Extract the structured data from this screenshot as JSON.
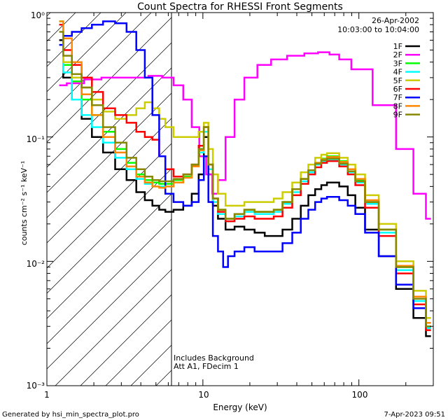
{
  "chart_data": {
    "type": "line",
    "title": "Count Spectra for RHESSI Front Segments",
    "xlabel": "Energy (keV)",
    "ylabel": "counts cm⁻² s⁻¹ keV⁻¹",
    "xscale": "log",
    "yscale": "log",
    "xlim": [
      1,
      300
    ],
    "ylim": [
      0.001,
      1
    ],
    "x_tick_labels": [
      {
        "v": 1,
        "label": "1"
      },
      {
        "v": 10,
        "label": "10"
      },
      {
        "v": 100,
        "label": "100"
      }
    ],
    "y_tick_labels": [
      {
        "v": 1,
        "label": "10⁰"
      },
      {
        "v": 0.1,
        "label": "10⁻¹"
      },
      {
        "v": 0.01,
        "label": "10⁻²"
      },
      {
        "v": 0.001,
        "label": "10⁻³"
      }
    ],
    "info_date": "26-Apr-2002",
    "info_time": "10:03:00 to 10:04:00",
    "annotation_1": "Includes Background",
    "annotation_2": "Att A1, FDecim 1",
    "attenuator_cutoff_kev": 6,
    "footer_left": "Generated by hsi_min_spectra_plot.pro",
    "footer_right": "7-Apr-2023 09:51",
    "series": [
      {
        "name": "1F",
        "color": "#000000",
        "x": [
          1.2,
          1.35,
          1.55,
          1.8,
          2.1,
          2.5,
          3,
          3.5,
          4,
          4.5,
          5,
          5.5,
          6,
          7,
          8,
          9,
          9.8,
          10.5,
          11.2,
          12,
          13,
          15,
          17,
          20,
          23,
          27,
          30,
          35,
          40,
          45,
          50,
          55,
          60,
          65,
          70,
          80,
          90,
          100,
          120,
          150,
          200,
          250,
          290
        ],
        "y": [
          0.6,
          0.3,
          0.2,
          0.14,
          0.1,
          0.075,
          0.055,
          0.045,
          0.036,
          0.031,
          0.028,
          0.026,
          0.025,
          0.026,
          0.028,
          0.035,
          0.05,
          0.1,
          0.05,
          0.028,
          0.022,
          0.018,
          0.019,
          0.018,
          0.017,
          0.016,
          0.016,
          0.018,
          0.022,
          0.028,
          0.034,
          0.038,
          0.041,
          0.043,
          0.043,
          0.04,
          0.034,
          0.027,
          0.018,
          0.011,
          0.006,
          0.0035,
          0.0025
        ]
      },
      {
        "name": "2F",
        "color": "#ff00ff",
        "x": [
          1.2,
          1.5,
          2,
          2.5,
          3,
          4,
          5,
          6,
          7,
          8,
          9,
          10,
          11,
          12,
          13,
          15,
          17,
          20,
          25,
          30,
          40,
          50,
          60,
          70,
          80,
          100,
          150,
          200,
          250,
          290
        ],
        "y": [
          0.26,
          0.27,
          0.29,
          0.3,
          0.3,
          0.3,
          0.31,
          0.3,
          0.26,
          0.2,
          0.12,
          0.07,
          0.05,
          0.035,
          0.045,
          0.1,
          0.2,
          0.3,
          0.38,
          0.42,
          0.45,
          0.47,
          0.48,
          0.46,
          0.42,
          0.35,
          0.18,
          0.08,
          0.035,
          0.022
        ]
      },
      {
        "name": "3F",
        "color": "#00ff00",
        "x": [
          1.2,
          1.35,
          1.55,
          1.8,
          2.1,
          2.5,
          3,
          3.5,
          4,
          4.5,
          5,
          5.5,
          6,
          7,
          8,
          9,
          9.8,
          10.5,
          11.2,
          12,
          13,
          15,
          17,
          20,
          23,
          27,
          30,
          35,
          40,
          45,
          50,
          55,
          60,
          65,
          70,
          80,
          90,
          100,
          120,
          150,
          200,
          250,
          290
        ],
        "y": [
          0.85,
          0.38,
          0.28,
          0.2,
          0.15,
          0.11,
          0.08,
          0.062,
          0.05,
          0.045,
          0.043,
          0.042,
          0.042,
          0.045,
          0.048,
          0.06,
          0.08,
          0.12,
          0.06,
          0.032,
          0.026,
          0.022,
          0.024,
          0.026,
          0.025,
          0.025,
          0.026,
          0.03,
          0.038,
          0.046,
          0.054,
          0.062,
          0.067,
          0.07,
          0.07,
          0.064,
          0.055,
          0.045,
          0.03,
          0.018,
          0.009,
          0.005,
          0.003
        ]
      },
      {
        "name": "4F",
        "color": "#00ffff",
        "x": [
          1.2,
          1.35,
          1.55,
          1.8,
          2.1,
          2.5,
          3,
          3.5,
          4,
          4.5,
          5,
          5.5,
          6,
          7,
          8,
          9,
          9.8,
          10.5,
          11.2,
          12,
          13,
          15,
          17,
          20,
          23,
          27,
          30,
          35,
          40,
          45,
          50,
          55,
          60,
          65,
          70,
          80,
          90,
          100,
          120,
          150,
          200,
          250,
          290
        ],
        "y": [
          0.8,
          0.33,
          0.2,
          0.15,
          0.12,
          0.09,
          0.068,
          0.055,
          0.046,
          0.042,
          0.04,
          0.04,
          0.04,
          0.043,
          0.047,
          0.058,
          0.075,
          0.11,
          0.055,
          0.03,
          0.024,
          0.021,
          0.023,
          0.025,
          0.024,
          0.024,
          0.025,
          0.029,
          0.036,
          0.044,
          0.052,
          0.06,
          0.064,
          0.066,
          0.066,
          0.06,
          0.052,
          0.043,
          0.029,
          0.017,
          0.0085,
          0.0048,
          0.0029
        ]
      },
      {
        "name": "5F",
        "color": "#cccc00",
        "x": [
          1.2,
          1.35,
          1.55,
          1.8,
          2.1,
          2.5,
          3,
          3.5,
          4,
          4.5,
          5,
          5.5,
          6,
          7,
          8,
          9,
          9.8,
          10.5,
          11.2,
          12,
          13,
          15,
          17,
          20,
          23,
          27,
          30,
          35,
          40,
          45,
          50,
          55,
          60,
          65,
          70,
          80,
          90,
          100,
          120,
          150,
          200,
          250,
          290
        ],
        "y": [
          0.8,
          0.4,
          0.3,
          0.25,
          0.2,
          0.16,
          0.14,
          0.15,
          0.17,
          0.19,
          0.17,
          0.14,
          0.12,
          0.1,
          0.1,
          0.1,
          0.11,
          0.13,
          0.08,
          0.05,
          0.035,
          0.028,
          0.028,
          0.03,
          0.03,
          0.03,
          0.032,
          0.036,
          0.043,
          0.052,
          0.06,
          0.068,
          0.072,
          0.074,
          0.074,
          0.068,
          0.06,
          0.05,
          0.034,
          0.02,
          0.01,
          0.0058,
          0.0035
        ]
      },
      {
        "name": "6F",
        "color": "#ff0000",
        "x": [
          1.2,
          1.35,
          1.55,
          1.8,
          2.1,
          2.5,
          3,
          3.5,
          4,
          4.5,
          5,
          5.5,
          6,
          7,
          8,
          9,
          9.8,
          10.5,
          11.2,
          12,
          13,
          15,
          17,
          20,
          23,
          27,
          30,
          35,
          40,
          45,
          50,
          55,
          60,
          65,
          70,
          80,
          90,
          100,
          120,
          150,
          200,
          250,
          290
        ],
        "y": [
          0.8,
          0.5,
          0.38,
          0.3,
          0.23,
          0.17,
          0.15,
          0.13,
          0.11,
          0.1,
          0.095,
          0.07,
          0.055,
          0.048,
          0.05,
          0.06,
          0.085,
          0.12,
          0.06,
          0.032,
          0.025,
          0.021,
          0.022,
          0.023,
          0.022,
          0.022,
          0.023,
          0.027,
          0.034,
          0.042,
          0.05,
          0.057,
          0.062,
          0.064,
          0.064,
          0.058,
          0.05,
          0.041,
          0.027,
          0.016,
          0.008,
          0.0045,
          0.0028
        ]
      },
      {
        "name": "7F",
        "color": "#0000ff",
        "x": [
          1.2,
          1.35,
          1.55,
          1.8,
          2.1,
          2.5,
          3,
          3.5,
          4,
          4.5,
          5,
          5.5,
          6,
          7,
          8,
          9,
          9.8,
          10.5,
          11.2,
          12,
          13,
          14,
          15,
          17,
          20,
          23,
          27,
          30,
          35,
          40,
          45,
          50,
          55,
          60,
          65,
          70,
          80,
          90,
          100,
          120,
          150,
          200,
          250,
          290
        ],
        "y": [
          0.55,
          0.65,
          0.7,
          0.75,
          0.8,
          0.85,
          0.82,
          0.7,
          0.5,
          0.3,
          0.15,
          0.07,
          0.035,
          0.03,
          0.028,
          0.03,
          0.045,
          0.07,
          0.03,
          0.016,
          0.012,
          0.009,
          0.011,
          0.012,
          0.013,
          0.012,
          0.012,
          0.012,
          0.014,
          0.017,
          0.022,
          0.026,
          0.03,
          0.032,
          0.033,
          0.033,
          0.031,
          0.028,
          0.024,
          0.017,
          0.011,
          0.0065,
          0.0042,
          0.003
        ]
      },
      {
        "name": "8F",
        "color": "#ff8800",
        "x": [
          1.2,
          1.35,
          1.55,
          1.8,
          2.1,
          2.5,
          3,
          3.5,
          4,
          4.5,
          5,
          5.5,
          6,
          7,
          8,
          9,
          9.8,
          10.5,
          11.2,
          12,
          13,
          15,
          17,
          20,
          23,
          27,
          30,
          35,
          40,
          45,
          50,
          55,
          60,
          65,
          70,
          80,
          90,
          100,
          120,
          150,
          200,
          250,
          290
        ],
        "y": [
          0.85,
          0.62,
          0.4,
          0.22,
          0.15,
          0.1,
          0.075,
          0.058,
          0.048,
          0.043,
          0.04,
          0.039,
          0.04,
          0.043,
          0.047,
          0.058,
          0.078,
          0.12,
          0.06,
          0.032,
          0.026,
          0.022,
          0.024,
          0.026,
          0.025,
          0.025,
          0.026,
          0.03,
          0.038,
          0.046,
          0.054,
          0.062,
          0.066,
          0.069,
          0.069,
          0.063,
          0.055,
          0.046,
          0.031,
          0.018,
          0.0092,
          0.0052,
          0.0032
        ]
      },
      {
        "name": "9F",
        "color": "#888800",
        "x": [
          1.2,
          1.35,
          1.55,
          1.8,
          2.1,
          2.5,
          3,
          3.5,
          4,
          4.5,
          5,
          5.5,
          6,
          7,
          8,
          9,
          9.8,
          10.5,
          11.2,
          12,
          13,
          15,
          17,
          20,
          23,
          27,
          30,
          35,
          40,
          45,
          50,
          55,
          60,
          65,
          70,
          80,
          90,
          100,
          120,
          150,
          200,
          250,
          290
        ],
        "y": [
          0.7,
          0.45,
          0.32,
          0.25,
          0.18,
          0.12,
          0.09,
          0.068,
          0.055,
          0.048,
          0.045,
          0.044,
          0.044,
          0.046,
          0.05,
          0.06,
          0.08,
          0.12,
          0.06,
          0.032,
          0.026,
          0.022,
          0.024,
          0.026,
          0.025,
          0.025,
          0.026,
          0.03,
          0.038,
          0.046,
          0.054,
          0.061,
          0.065,
          0.067,
          0.067,
          0.061,
          0.053,
          0.044,
          0.03,
          0.018,
          0.009,
          0.005,
          0.003
        ]
      }
    ]
  }
}
